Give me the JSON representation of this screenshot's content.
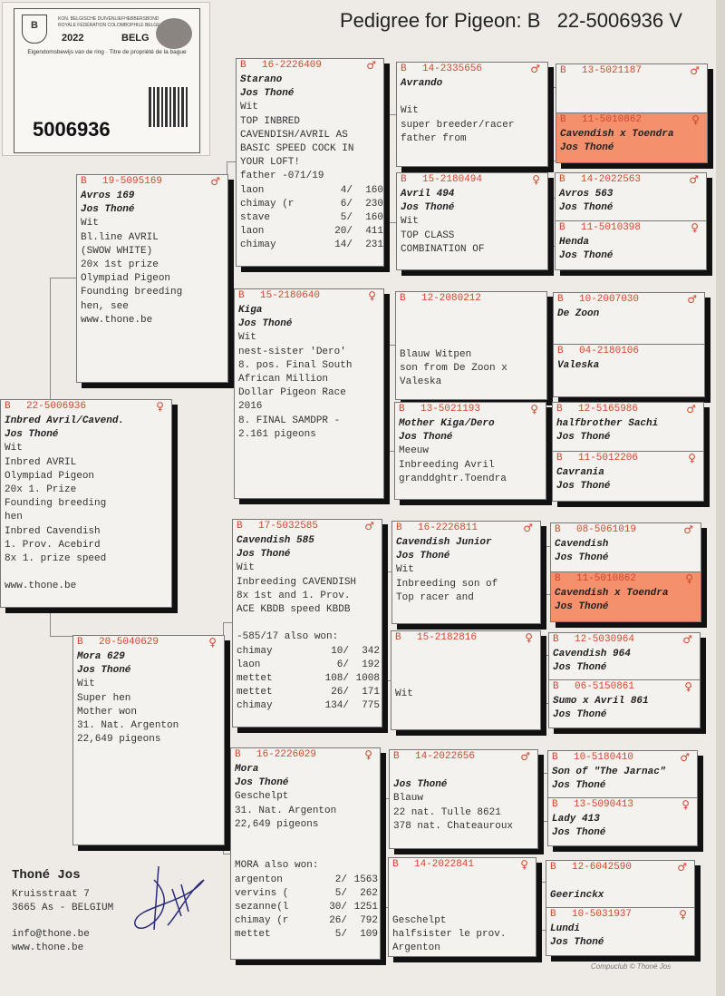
{
  "title": "Pedigree for Pigeon: B   22-5006936 V",
  "ring_label": {
    "federation_nl": "KON. BELGISCHE DUIVENLIEFHEBBERSBOND",
    "federation_fr": "ROYALE FÉDÉRATION COLOMBOPHILE BELGE",
    "year": "2022",
    "country": "BELG",
    "ownership": "Eigendomsbewijs van de ring · Titre de propriété de la bague",
    "number": "5006936"
  },
  "colors": {
    "ring_red": "#d2462c",
    "highlight": "#f4906c",
    "paper": "#f4f2ee"
  },
  "cards": [
    {
      "prefix": "B",
      "ring": "22-5006936",
      "sex": "♀",
      "name": "Inbred Avril/Cavend.",
      "owner": "Jos Thoné",
      "lines": [
        "Wit",
        "Inbred AVRIL",
        "Olympiad Pigeon",
        "20x 1. Prize",
        "Founding breeding",
        "hen",
        "Inbred Cavendish",
        "1. Prov. Acebird",
        "8x 1. prize speed",
        "",
        "www.thone.be"
      ]
    },
    {
      "prefix": "B",
      "ring": "19-5095169",
      "sex": "♂",
      "name": "Avros 169",
      "owner": "Jos Thoné",
      "lines": [
        "Wit",
        "Bl.line AVRIL",
        "(SWOW WHITE)",
        "20x 1st prize",
        "Olympiad Pigeon",
        "Founding breeding",
        "hen, see",
        "www.thone.be"
      ]
    },
    {
      "prefix": "B",
      "ring": "20-5040629",
      "sex": "♀",
      "name": "Mora 629",
      "owner": "Jos Thoné",
      "lines": [
        "Wit",
        "Super hen",
        "Mother won",
        "31. Nat. Argenton",
        "22,649 pigeons"
      ]
    },
    {
      "prefix": "B",
      "ring": "16-2226409",
      "sex": "♂",
      "name": "Starano",
      "owner": "Jos Thoné",
      "lines": [
        "Wit",
        "TOP INBRED",
        "CAVENDISH/AVRIL AS",
        "BASIC SPEED COCK IN",
        "YOUR LOFT!",
        "father -071/19"
      ],
      "results": [
        {
          "race": "laon",
          "place": "4/",
          "total": "160"
        },
        {
          "race": "chimay (r",
          "place": "6/",
          "total": "230"
        },
        {
          "race": "stave",
          "place": "5/",
          "total": "160"
        },
        {
          "race": "laon",
          "place": "20/",
          "total": "411"
        },
        {
          "race": "chimay",
          "place": "14/",
          "total": "231"
        }
      ]
    },
    {
      "prefix": "B",
      "ring": "15-2180640",
      "sex": "♀",
      "name": "Kiga",
      "owner": "Jos Thoné",
      "lines": [
        "Wit",
        "nest-sister 'Dero'",
        "8. pos. Final South",
        "African Million",
        "Dollar Pigeon Race",
        "2016",
        "8. FINAL SAMDPR -",
        "2.161 pigeons"
      ]
    },
    {
      "prefix": "B",
      "ring": "17-5032585",
      "sex": "♂",
      "name": "Cavendish 585",
      "owner": "Jos Thoné",
      "lines": [
        "Wit",
        "Inbreeding CAVENDISH",
        "8x 1st and 1. Prov.",
        "ACE KBDB speed KBDB",
        "",
        "-585/17 also won:"
      ],
      "results": [
        {
          "race": "chimay",
          "place": "10/",
          "total": "342"
        },
        {
          "race": "laon",
          "place": "6/",
          "total": "192"
        },
        {
          "race": "mettet",
          "place": "108/",
          "total": "1008"
        },
        {
          "race": "mettet",
          "place": "26/",
          "total": "171"
        },
        {
          "race": "chimay",
          "place": "134/",
          "total": "775"
        }
      ]
    },
    {
      "prefix": "B",
      "ring": "16-2226029",
      "sex": "♀",
      "name": "Mora",
      "owner": "Jos Thoné",
      "lines": [
        "Geschelpt",
        "31. Nat. Argenton",
        "22,649 pigeons",
        "",
        "",
        "MORA also won:"
      ],
      "results": [
        {
          "race": "argenton",
          "place": "2/",
          "total": "1563"
        },
        {
          "race": "vervins (",
          "place": "5/",
          "total": "262"
        },
        {
          "race": "sezanne(l",
          "place": "30/",
          "total": "1251"
        },
        {
          "race": "chimay (r",
          "place": "26/",
          "total": "792"
        },
        {
          "race": "mettet",
          "place": "5/",
          "total": "109"
        }
      ]
    },
    {
      "prefix": "B",
      "ring": "14-2335656",
      "sex": "♂",
      "name": "Avrando",
      "owner": "",
      "lines": [
        "Wit",
        "super breeder/racer",
        "father from"
      ]
    },
    {
      "prefix": "B",
      "ring": "15-2180494",
      "sex": "♀",
      "name": "Avril 494",
      "owner": "Jos Thoné",
      "lines": [
        "Wit",
        "TOP CLASS",
        "COMBINATION OF"
      ]
    },
    {
      "prefix": "B",
      "ring": "12-2080212",
      "sex": "",
      "name": "",
      "owner": "",
      "lines": [
        "",
        "Blauw Witpen",
        "son from De Zoon x",
        "Valeska"
      ]
    },
    {
      "prefix": "B",
      "ring": "13-5021193",
      "sex": "♀",
      "name": "Mother Kiga/Dero",
      "owner": "Jos Thoné",
      "lines": [
        "Meeuw",
        "Inbreeding Avril",
        "granddghtr.Toendra"
      ]
    },
    {
      "prefix": "B",
      "ring": "16-2226811",
      "sex": "♂",
      "name": "Cavendish Junior",
      "owner": "Jos Thoné",
      "lines": [
        "Wit",
        "Inbreeding son of",
        "Top racer and"
      ]
    },
    {
      "prefix": "B",
      "ring": "15-2182816",
      "sex": "♀",
      "name": "",
      "owner": "",
      "lines": [
        "",
        "Wit"
      ]
    },
    {
      "prefix": "B",
      "ring": "14-2022656",
      "sex": "♂",
      "name": "",
      "owner": "Jos Thoné",
      "lines": [
        "Blauw",
        "22 nat. Tulle 8621",
        "378 nat. Chateauroux"
      ]
    },
    {
      "prefix": "B",
      "ring": "14-2022841",
      "sex": "♀",
      "name": "",
      "owner": "",
      "lines": [
        "",
        "Geschelpt",
        "halfsister le prov.",
        "Argenton"
      ]
    },
    {
      "prefix": "B",
      "ring": "13-5021187",
      "sex": "♂",
      "name": "",
      "owner": "",
      "lines": []
    },
    {
      "prefix": "B",
      "ring": "11-5010862",
      "sex": "♀",
      "name": "Cavendish x Toendra",
      "owner": "Jos Thoné",
      "lines": [],
      "highlight": true
    },
    {
      "prefix": "B",
      "ring": "14-2022563",
      "sex": "♂",
      "name": "Avros 563",
      "owner": "Jos Thoné",
      "lines": []
    },
    {
      "prefix": "B",
      "ring": "11-5010398",
      "sex": "♀",
      "name": "Henda",
      "owner": "Jos Thoné",
      "lines": []
    },
    {
      "prefix": "B",
      "ring": "10-2007030",
      "sex": "♂",
      "name": "De Zoon",
      "owner": "",
      "lines": []
    },
    {
      "prefix": "B",
      "ring": "04-2180106",
      "sex": "",
      "name": "Valeska",
      "owner": "",
      "lines": []
    },
    {
      "prefix": "B",
      "ring": "12-5165986",
      "sex": "♂",
      "name": "halfbrother Sachi",
      "owner": "Jos Thoné",
      "lines": []
    },
    {
      "prefix": "B",
      "ring": "11-5012206",
      "sex": "♀",
      "name": "Cavrania",
      "owner": "Jos Thoné",
      "lines": []
    },
    {
      "prefix": "B",
      "ring": "08-5061019",
      "sex": "♂",
      "name": "Cavendish",
      "owner": "Jos Thoné",
      "lines": []
    },
    {
      "prefix": "B",
      "ring": "11-5010862",
      "sex": "♀",
      "name": "Cavendish x Toendra",
      "owner": "Jos Thoné",
      "lines": [],
      "highlight": true
    },
    {
      "prefix": "B",
      "ring": "12-5030964",
      "sex": "♂",
      "name": "Cavendish 964",
      "owner": "Jos Thoné",
      "lines": []
    },
    {
      "prefix": "B",
      "ring": "06-5150861",
      "sex": "♀",
      "name": "Sumo x Avril 861",
      "owner": "Jos Thoné",
      "lines": []
    },
    {
      "prefix": "B",
      "ring": "10-5180410",
      "sex": "♂",
      "name": "Son of \"The Jarnac\"",
      "owner": "Jos Thoné",
      "lines": []
    },
    {
      "prefix": "B",
      "ring": "13-5090413",
      "sex": "♀",
      "name": "Lady 413",
      "owner": "Jos Thoné",
      "lines": []
    },
    {
      "prefix": "B",
      "ring": "12-6042590",
      "sex": "♂",
      "name": "",
      "owner": "Geerinckx",
      "lines": []
    },
    {
      "prefix": "B",
      "ring": "10-5031937",
      "sex": "♀",
      "name": "Lundi",
      "owner": "Jos Thoné",
      "lines": []
    }
  ],
  "breeder": {
    "name": "Thoné Jos",
    "street": "Kruisstraat 7",
    "city": "3665  As - BELGIUM",
    "email": "info@thone.be",
    "web": "www.thone.be"
  },
  "footer": "Compuclub © Thoné Jos"
}
